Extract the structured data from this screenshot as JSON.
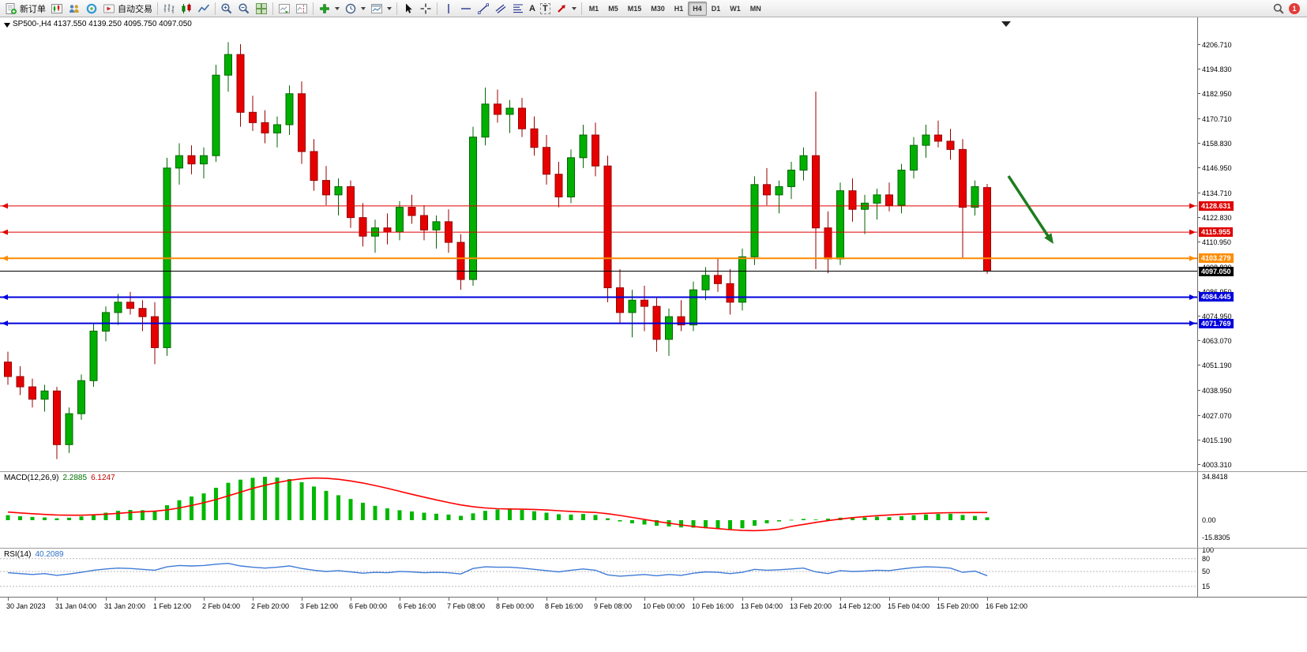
{
  "toolbar": {
    "new_order": {
      "label": "新订单"
    },
    "auto_trading": {
      "label": "自动交易"
    },
    "text_tool": "A",
    "label_tool": "T",
    "timeframes": [
      "M1",
      "M5",
      "M15",
      "M30",
      "H1",
      "H4",
      "D1",
      "W1",
      "MN"
    ],
    "active_timeframe": "H4",
    "notification_badge": "1"
  },
  "chart": {
    "title": "SP500-,H4 4137.550 4139.250 4095.750 4097.050",
    "symbol": "SP500-",
    "timeframe": "H4",
    "current_bar": {
      "open": 4137.55,
      "high": 4139.25,
      "low": 4095.75,
      "close": 4097.05
    },
    "up_color": "#00b000",
    "down_color": "#e60000",
    "price_ticks": [
      "4206.710",
      "4194.830",
      "4182.950",
      "4170.710",
      "4158.830",
      "4146.950",
      "4134.710",
      "4122.830",
      "4110.950",
      "4098.830",
      "4086.950",
      "4074.950",
      "4063.070",
      "4051.190",
      "4038.950",
      "4027.070",
      "4015.190",
      "4003.310"
    ],
    "levels": [
      {
        "price": 4128.631,
        "label": "4128.631",
        "color": "#e00000",
        "width": 1
      },
      {
        "price": 4115.955,
        "label": "4115.955",
        "color": "#e00000",
        "width": 1
      },
      {
        "price": 4103.279,
        "label": "4103.279",
        "color": "#ff8c00",
        "width": 2
      },
      {
        "price": 4097.05,
        "label": "4097.050",
        "color": "#000000",
        "width": 1
      },
      {
        "price": 4084.445,
        "label": "4084.445",
        "color": "#0000dc",
        "width": 2
      },
      {
        "price": 4071.769,
        "label": "4071.769",
        "color": "#0000dc",
        "width": 2
      }
    ],
    "time_labels": [
      "30 Jan 2023",
      "31 Jan 04:00",
      "31 Jan 20:00",
      "1 Feb 12:00",
      "2 Feb 04:00",
      "2 Feb 20:00",
      "3 Feb 12:00",
      "6 Feb 00:00",
      "6 Feb 16:00",
      "7 Feb 08:00",
      "8 Feb 00:00",
      "8 Feb 16:00",
      "9 Feb 08:00",
      "10 Feb 00:00",
      "10 Feb 16:00",
      "13 Feb 04:00",
      "13 Feb 20:00",
      "14 Feb 12:00",
      "15 Feb 04:00",
      "15 Feb 20:00",
      "16 Feb 12:00"
    ],
    "candles": [
      [
        4053,
        4058,
        4042,
        4046
      ],
      [
        4046,
        4051,
        4037,
        4041
      ],
      [
        4041,
        4045,
        4031,
        4035
      ],
      [
        4035,
        4042,
        4029,
        4039
      ],
      [
        4039,
        4041,
        4006,
        4013
      ],
      [
        4013,
        4031,
        4009,
        4028
      ],
      [
        4028,
        4047,
        4025,
        4044
      ],
      [
        4044,
        4072,
        4041,
        4068
      ],
      [
        4068,
        4080,
        4063,
        4077
      ],
      [
        4077,
        4086,
        4071,
        4082
      ],
      [
        4082,
        4087,
        4076,
        4079
      ],
      [
        4079,
        4083,
        4068,
        4075
      ],
      [
        4075,
        4082,
        4052,
        4060
      ],
      [
        4060,
        4152,
        4056,
        4147
      ],
      [
        4147,
        4159,
        4139,
        4153
      ],
      [
        4153,
        4158,
        4144,
        4149
      ],
      [
        4149,
        4157,
        4142,
        4153
      ],
      [
        4153,
        4197,
        4150,
        4192
      ],
      [
        4192,
        4208,
        4184,
        4202
      ],
      [
        4202,
        4207,
        4167,
        4174
      ],
      [
        4174,
        4182,
        4165,
        4169
      ],
      [
        4169,
        4175,
        4159,
        4164
      ],
      [
        4164,
        4172,
        4157,
        4168
      ],
      [
        4168,
        4187,
        4163,
        4183
      ],
      [
        4183,
        4189,
        4149,
        4155
      ],
      [
        4155,
        4161,
        4136,
        4141
      ],
      [
        4141,
        4148,
        4129,
        4134
      ],
      [
        4134,
        4142,
        4124,
        4138
      ],
      [
        4138,
        4141,
        4118,
        4123
      ],
      [
        4123,
        4130,
        4109,
        4114
      ],
      [
        4114,
        4122,
        4106,
        4118
      ],
      [
        4118,
        4125,
        4110,
        4116
      ],
      [
        4116,
        4131,
        4112,
        4128
      ],
      [
        4128,
        4134,
        4120,
        4124
      ],
      [
        4124,
        4129,
        4112,
        4117
      ],
      [
        4117,
        4124,
        4108,
        4121
      ],
      [
        4121,
        4127,
        4106,
        4111
      ],
      [
        4111,
        4115,
        4088,
        4093
      ],
      [
        4093,
        4167,
        4090,
        4162
      ],
      [
        4162,
        4186,
        4158,
        4178
      ],
      [
        4178,
        4185,
        4169,
        4173
      ],
      [
        4173,
        4180,
        4164,
        4176
      ],
      [
        4176,
        4181,
        4162,
        4166
      ],
      [
        4166,
        4172,
        4153,
        4157
      ],
      [
        4157,
        4163,
        4139,
        4144
      ],
      [
        4144,
        4150,
        4128,
        4133
      ],
      [
        4133,
        4156,
        4130,
        4152
      ],
      [
        4152,
        4168,
        4147,
        4163
      ],
      [
        4163,
        4169,
        4143,
        4148
      ],
      [
        4148,
        4153,
        4082,
        4089
      ],
      [
        4089,
        4098,
        4072,
        4077
      ],
      [
        4077,
        4088,
        4065,
        4083
      ],
      [
        4083,
        4090,
        4068,
        4080
      ],
      [
        4080,
        4084,
        4058,
        4064
      ],
      [
        4064,
        4079,
        4056,
        4075
      ],
      [
        4075,
        4083,
        4068,
        4071
      ],
      [
        4071,
        4092,
        4068,
        4088
      ],
      [
        4088,
        4099,
        4083,
        4095
      ],
      [
        4095,
        4103,
        4087,
        4091
      ],
      [
        4091,
        4098,
        4076,
        4082
      ],
      [
        4082,
        4108,
        4078,
        4104
      ],
      [
        4104,
        4143,
        4100,
        4139
      ],
      [
        4139,
        4147,
        4129,
        4134
      ],
      [
        4134,
        4141,
        4125,
        4138
      ],
      [
        4138,
        4150,
        4132,
        4146
      ],
      [
        4146,
        4157,
        4141,
        4153
      ],
      [
        4153,
        4184,
        4098,
        4118
      ],
      [
        4118,
        4126,
        4096,
        4103
      ],
      [
        4103,
        4140,
        4100,
        4136
      ],
      [
        4136,
        4142,
        4121,
        4127
      ],
      [
        4127,
        4134,
        4115,
        4130
      ],
      [
        4130,
        4137,
        4122,
        4134
      ],
      [
        4134,
        4140,
        4126,
        4129
      ],
      [
        4129,
        4149,
        4125,
        4146
      ],
      [
        4146,
        4162,
        4142,
        4158
      ],
      [
        4158,
        4168,
        4152,
        4163
      ],
      [
        4163,
        4170,
        4157,
        4160
      ],
      [
        4160,
        4166,
        4151,
        4156
      ],
      [
        4156,
        4161,
        4103,
        4128
      ],
      [
        4128,
        4141,
        4124,
        4138
      ],
      [
        4137.55,
        4139.25,
        4095.75,
        4097.05
      ]
    ],
    "arrow_annotation": {
      "color": "#1e7d1e"
    }
  },
  "macd": {
    "label": "MACD(12,26,9)",
    "value_main": "2.2885",
    "value_signal": "6.1247",
    "scale": [
      "34.8418",
      "0.00",
      "-15.8305"
    ],
    "hist_color": "#00b800",
    "signal_color": "#ff0000",
    "histogram": [
      4.0,
      3.2,
      2.6,
      2.2,
      1.5,
      2.0,
      3.0,
      4.5,
      6.0,
      7.5,
      8.2,
      8.0,
      7.5,
      12.0,
      16.0,
      19.0,
      21.5,
      26.0,
      30.0,
      32.5,
      34.0,
      34.8,
      34.2,
      33.0,
      30.5,
      27.0,
      23.5,
      20.0,
      17.0,
      14.0,
      11.5,
      9.5,
      8.0,
      7.0,
      6.0,
      5.2,
      4.5,
      3.5,
      5.5,
      7.5,
      8.5,
      8.8,
      8.2,
      7.2,
      6.0,
      4.8,
      4.5,
      5.0,
      4.2,
      1.5,
      -1.0,
      -2.5,
      -3.5,
      -4.5,
      -5.0,
      -5.8,
      -6.0,
      -6.5,
      -6.8,
      -7.5,
      -6.5,
      -4.5,
      -2.5,
      -1.0,
      0.3,
      1.0,
      0.5,
      1.2,
      2.0,
      1.6,
      2.2,
      2.8,
      2.4,
      3.2,
      4.0,
      4.6,
      5.0,
      5.2,
      4.2,
      3.4,
      2.2885
    ],
    "signal": [
      6.5,
      5.8,
      5.2,
      4.6,
      4.2,
      4.0,
      4.0,
      4.3,
      4.8,
      5.5,
      6.2,
      6.8,
      7.2,
      8.2,
      9.8,
      11.8,
      14.0,
      16.5,
      19.5,
      22.5,
      25.5,
      28.0,
      30.2,
      32.0,
      33.2,
      33.8,
      33.6,
      32.8,
      31.5,
      29.8,
      27.8,
      25.6,
      23.2,
      20.8,
      18.5,
      16.3,
      14.2,
      12.2,
      10.8,
      9.8,
      9.2,
      9.0,
      8.8,
      8.6,
      8.2,
      7.6,
      7.0,
      6.6,
      6.2,
      5.2,
      3.8,
      2.2,
      0.6,
      -1.0,
      -2.4,
      -3.8,
      -5.0,
      -6.0,
      -6.8,
      -7.6,
      -8.2,
      -8.4,
      -8.0,
      -7.2,
      -5.0,
      -3.4,
      -1.8,
      -0.4,
      0.9,
      2.0,
      2.9,
      3.6,
      4.2,
      4.7,
      5.1,
      5.5,
      5.8,
      6.0,
      6.1,
      6.15,
      6.1247
    ]
  },
  "rsi": {
    "label": "RSI(14)",
    "value": "40.2089",
    "scale": [
      "100",
      "80",
      "50",
      "15"
    ],
    "levels": [
      80,
      50,
      15
    ],
    "line_color": "#3e7bd6",
    "values": [
      47,
      45,
      43,
      45,
      41,
      44,
      48,
      53,
      56,
      58,
      57,
      55,
      53,
      61,
      64,
      63,
      64,
      67,
      69,
      63,
      60,
      58,
      60,
      63,
      57,
      53,
      50,
      52,
      49,
      46,
      48,
      47,
      50,
      49,
      47,
      48,
      47,
      44,
      57,
      61,
      60,
      60,
      58,
      55,
      52,
      49,
      53,
      56,
      53,
      42,
      39,
      41,
      43,
      40,
      43,
      41,
      46,
      49,
      48,
      45,
      48,
      55,
      53,
      54,
      56,
      58,
      49,
      45,
      52,
      50,
      51,
      53,
      52,
      56,
      59,
      61,
      60,
      58,
      48,
      51,
      40.2089
    ]
  }
}
